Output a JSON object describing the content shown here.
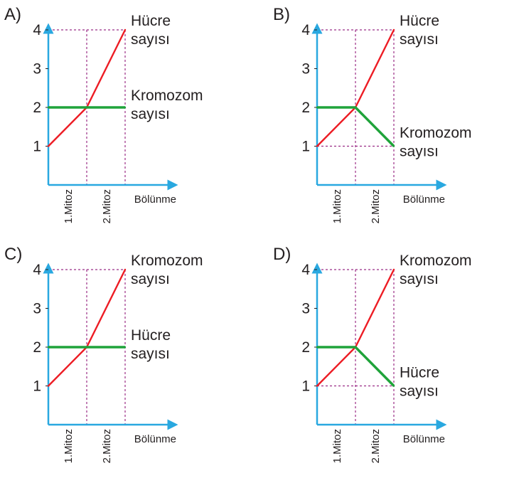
{
  "chart_data": [
    {
      "type": "line",
      "label": "A)",
      "categories": [
        "0",
        "1.Mitoz",
        "2.Mitoz"
      ],
      "xlabel": "Bölünme",
      "yticks": [
        1,
        2,
        3,
        4
      ],
      "ylim": [
        0,
        4
      ],
      "series": [
        {
          "name": "Hücre sayısı",
          "name_lines": [
            "Hücre",
            "sayısı"
          ],
          "color": "#ed1c24",
          "values": [
            1,
            2,
            4
          ]
        },
        {
          "name": "Kromozom sayısı",
          "name_lines": [
            "Kromozom",
            "sayısı"
          ],
          "color": "#1fa33a",
          "values": [
            2,
            2,
            2
          ]
        }
      ]
    },
    {
      "type": "line",
      "label": "B)",
      "categories": [
        "0",
        "1.Mitoz",
        "2.Mitoz"
      ],
      "xlabel": "Bölünme",
      "yticks": [
        1,
        2,
        3,
        4
      ],
      "ylim": [
        0,
        4
      ],
      "series": [
        {
          "name": "Hücre sayısı",
          "name_lines": [
            "Hücre",
            "sayısı"
          ],
          "color": "#ed1c24",
          "values": [
            1,
            2,
            4
          ]
        },
        {
          "name": "Kromozom sayısı",
          "name_lines": [
            "Kromozom",
            "sayısı"
          ],
          "color": "#1fa33a",
          "values": [
            2,
            2,
            1
          ]
        }
      ]
    },
    {
      "type": "line",
      "label": "C)",
      "categories": [
        "0",
        "1.Mitoz",
        "2.Mitoz"
      ],
      "xlabel": "Bölünme",
      "yticks": [
        1,
        2,
        3,
        4
      ],
      "ylim": [
        0,
        4
      ],
      "series": [
        {
          "name": "Kromozom sayısı",
          "name_lines": [
            "Kromozom",
            "sayısı"
          ],
          "color": "#ed1c24",
          "values": [
            1,
            2,
            4
          ]
        },
        {
          "name": "Hücre sayısı",
          "name_lines": [
            "Hücre",
            "sayısı"
          ],
          "color": "#1fa33a",
          "values": [
            2,
            2,
            2
          ]
        }
      ]
    },
    {
      "type": "line",
      "label": "D)",
      "categories": [
        "0",
        "1.Mitoz",
        "2.Mitoz"
      ],
      "xlabel": "Bölünme",
      "yticks": [
        1,
        2,
        3,
        4
      ],
      "ylim": [
        0,
        4
      ],
      "series": [
        {
          "name": "Kromozom sayısı",
          "name_lines": [
            "Kromozom",
            "sayısı"
          ],
          "color": "#ed1c24",
          "values": [
            1,
            2,
            4
          ]
        },
        {
          "name": "Hücre sayısı",
          "name_lines": [
            "Hücre",
            "sayısı"
          ],
          "color": "#1fa33a",
          "values": [
            2,
            2,
            1
          ]
        }
      ]
    }
  ]
}
